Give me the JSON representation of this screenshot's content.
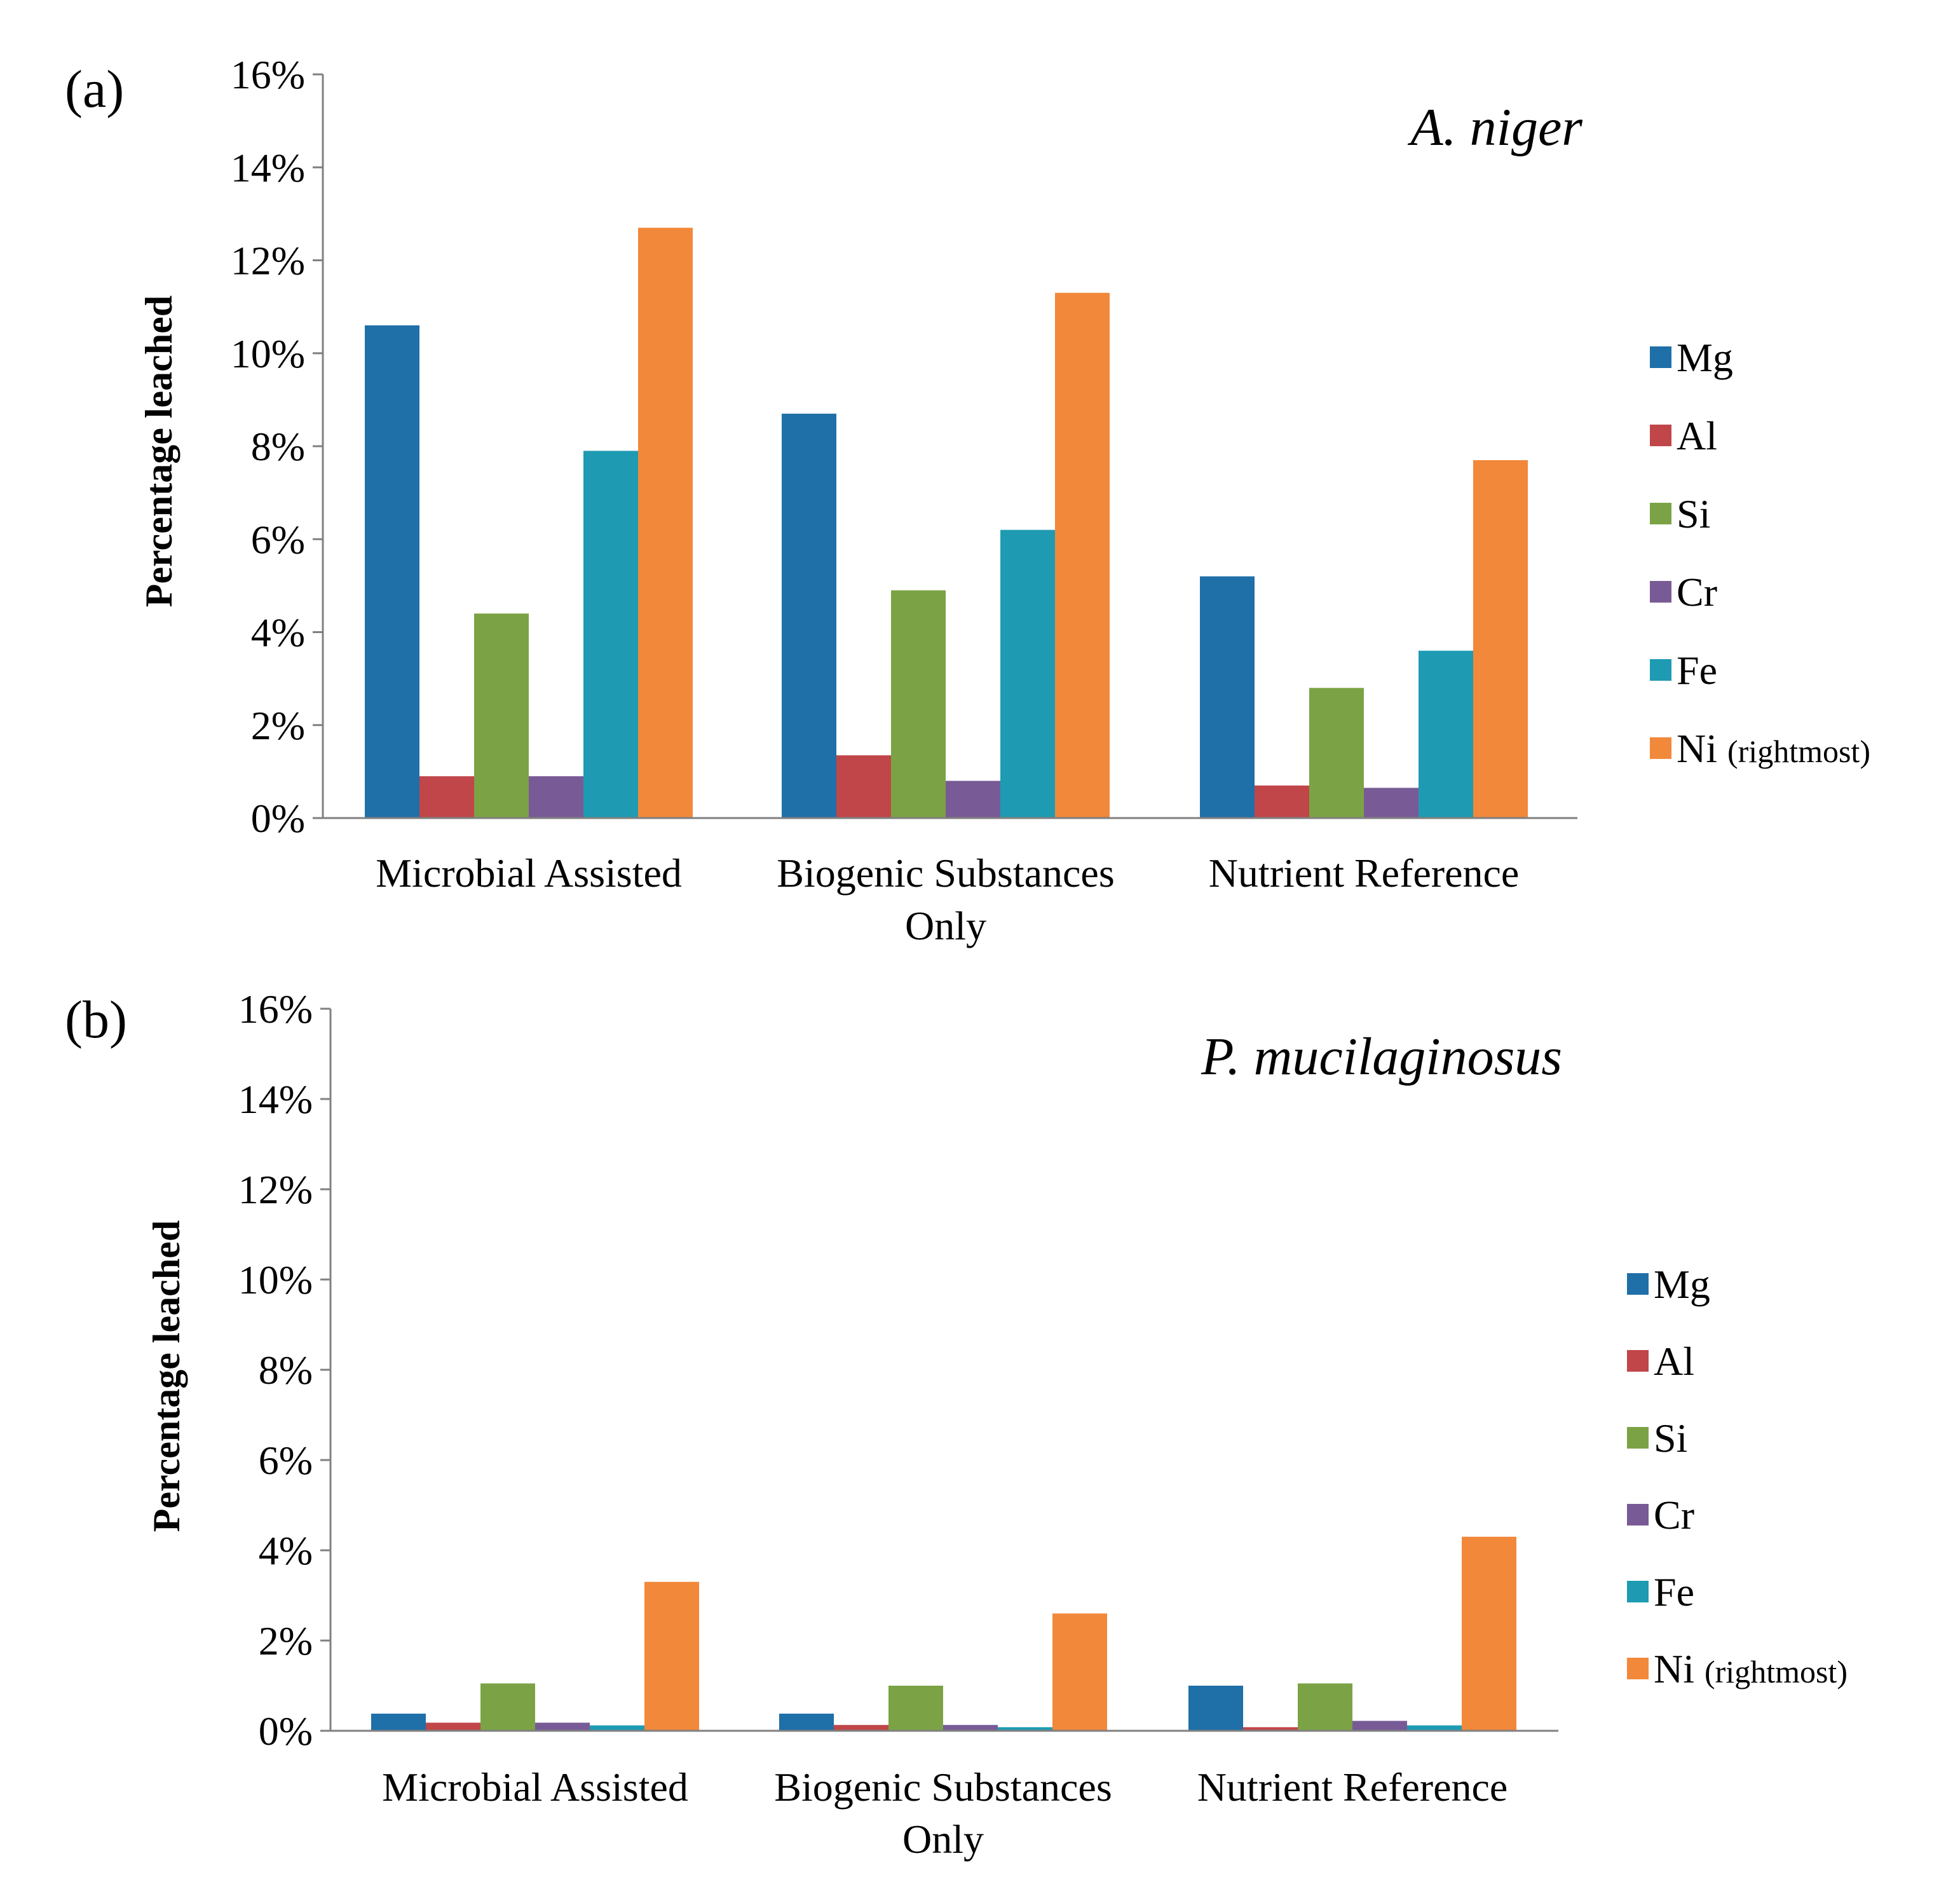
{
  "chart_data": [
    {
      "type": "bar",
      "panel_label": "(a)",
      "title": "A. niger",
      "ylabel": "Percentage leached",
      "xlabel": "",
      "ylim": [
        0,
        16
      ],
      "y_ticks": [
        "0%",
        "2%",
        "4%",
        "6%",
        "8%",
        "10%",
        "12%",
        "14%",
        "16%"
      ],
      "categories": [
        {
          "line1": "Microbial Assisted",
          "line2": ""
        },
        {
          "line1": "Biogenic Substances",
          "line2": "Only"
        },
        {
          "line1": "Nutrient Reference",
          "line2": ""
        }
      ],
      "series": [
        {
          "name": "Mg",
          "note": "",
          "color": "#1f6fa8",
          "values": [
            10.6,
            8.7,
            5.2
          ]
        },
        {
          "name": "Al",
          "note": "",
          "color": "#c0464a",
          "values": [
            0.9,
            1.35,
            0.7
          ]
        },
        {
          "name": "Si",
          "note": "",
          "color": "#7ba345",
          "values": [
            4.4,
            4.9,
            2.8
          ]
        },
        {
          "name": "Cr",
          "note": "",
          "color": "#785a96",
          "values": [
            0.9,
            0.8,
            0.65
          ]
        },
        {
          "name": "Fe",
          "note": "",
          "color": "#1e9bb3",
          "values": [
            7.9,
            6.2,
            3.6
          ]
        },
        {
          "name": "Ni",
          "note": "(rightmost)",
          "color": "#f2883a",
          "values": [
            12.7,
            11.3,
            7.7
          ]
        }
      ],
      "legend_position": "right",
      "grid": false
    },
    {
      "type": "bar",
      "panel_label": "(b)",
      "title": "P. mucilaginosus",
      "ylabel": "Percentage leached",
      "xlabel": "",
      "ylim": [
        0,
        16
      ],
      "y_ticks": [
        "0%",
        "2%",
        "4%",
        "6%",
        "8%",
        "10%",
        "12%",
        "14%",
        "16%"
      ],
      "categories": [
        {
          "line1": "Microbial Assisted",
          "line2": ""
        },
        {
          "line1": "Biogenic Substances",
          "line2": "Only"
        },
        {
          "line1": "Nutrient Reference",
          "line2": ""
        }
      ],
      "series": [
        {
          "name": "Mg",
          "note": "",
          "color": "#1f6fa8",
          "values": [
            0.38,
            0.38,
            1.0
          ]
        },
        {
          "name": "Al",
          "note": "",
          "color": "#c0464a",
          "values": [
            0.18,
            0.13,
            0.08
          ]
        },
        {
          "name": "Si",
          "note": "",
          "color": "#7ba345",
          "values": [
            1.05,
            1.0,
            1.05
          ]
        },
        {
          "name": "Cr",
          "note": "",
          "color": "#785a96",
          "values": [
            0.18,
            0.13,
            0.22
          ]
        },
        {
          "name": "Fe",
          "note": "",
          "color": "#1e9bb3",
          "values": [
            0.12,
            0.08,
            0.12
          ]
        },
        {
          "name": "Ni",
          "note": "(rightmost)",
          "color": "#f2883a",
          "values": [
            3.3,
            2.6,
            4.3
          ]
        }
      ],
      "legend_position": "right",
      "grid": false
    }
  ]
}
